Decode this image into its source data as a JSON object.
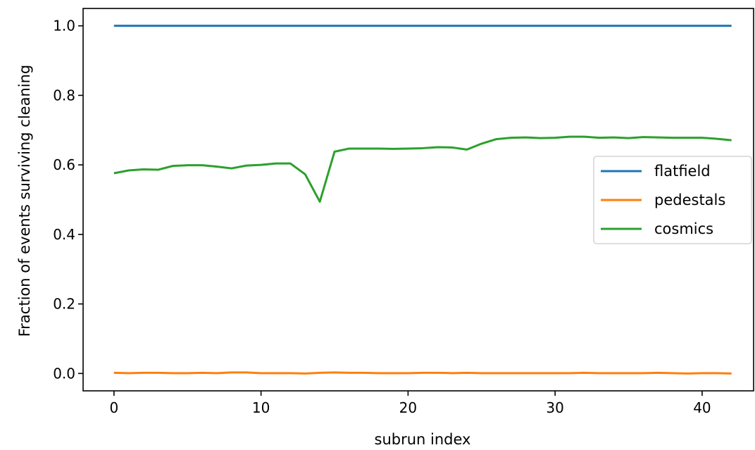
{
  "chart_data": {
    "type": "line",
    "title": "",
    "xlabel": "subrun index",
    "ylabel": "Fraction of events surviving cleaning",
    "xlim": [
      -2.1,
      43.5
    ],
    "ylim": [
      -0.05,
      1.05
    ],
    "x_ticks": [
      0,
      10,
      20,
      30,
      40
    ],
    "x_tick_labels": [
      "0",
      "10",
      "20",
      "30",
      "40"
    ],
    "y_ticks": [
      0.0,
      0.2,
      0.4,
      0.6,
      0.8,
      1.0
    ],
    "y_tick_labels": [
      "0.0",
      "0.2",
      "0.4",
      "0.6",
      "0.8",
      "1.0"
    ],
    "grid": false,
    "legend_position": "center-right",
    "x": [
      0,
      1,
      2,
      3,
      4,
      5,
      6,
      7,
      8,
      9,
      10,
      11,
      12,
      13,
      14,
      15,
      16,
      17,
      18,
      19,
      20,
      21,
      22,
      23,
      24,
      25,
      26,
      27,
      28,
      29,
      30,
      31,
      32,
      33,
      34,
      35,
      36,
      37,
      38,
      39,
      40,
      41,
      42
    ],
    "series": [
      {
        "name": "flatfield",
        "color": "#1f77b4",
        "values": [
          1.0,
          1.0,
          1.0,
          1.0,
          1.0,
          1.0,
          1.0,
          1.0,
          1.0,
          1.0,
          1.0,
          1.0,
          1.0,
          1.0,
          1.0,
          1.0,
          1.0,
          1.0,
          1.0,
          1.0,
          1.0,
          1.0,
          1.0,
          1.0,
          1.0,
          1.0,
          1.0,
          1.0,
          1.0,
          1.0,
          1.0,
          1.0,
          1.0,
          1.0,
          1.0,
          1.0,
          1.0,
          1.0,
          1.0,
          1.0,
          1.0,
          1.0,
          1.0
        ]
      },
      {
        "name": "pedestals",
        "color": "#ff7f0e",
        "values": [
          0.002,
          0.001,
          0.002,
          0.002,
          0.001,
          0.001,
          0.002,
          0.001,
          0.003,
          0.003,
          0.001,
          0.001,
          0.001,
          0.0,
          0.002,
          0.003,
          0.002,
          0.002,
          0.001,
          0.001,
          0.001,
          0.002,
          0.002,
          0.001,
          0.002,
          0.001,
          0.001,
          0.001,
          0.001,
          0.001,
          0.001,
          0.001,
          0.002,
          0.001,
          0.001,
          0.001,
          0.001,
          0.002,
          0.001,
          0.0,
          0.001,
          0.001,
          0.0
        ]
      },
      {
        "name": "cosmics",
        "color": "#2ca02c",
        "values": [
          0.576,
          0.584,
          0.587,
          0.586,
          0.597,
          0.599,
          0.599,
          0.595,
          0.59,
          0.598,
          0.6,
          0.604,
          0.604,
          0.573,
          0.494,
          0.638,
          0.647,
          0.647,
          0.647,
          0.646,
          0.647,
          0.648,
          0.651,
          0.65,
          0.644,
          0.661,
          0.674,
          0.678,
          0.679,
          0.677,
          0.678,
          0.681,
          0.681,
          0.678,
          0.679,
          0.677,
          0.68,
          0.679,
          0.678,
          0.678,
          0.678,
          0.675,
          0.671
        ]
      }
    ]
  }
}
